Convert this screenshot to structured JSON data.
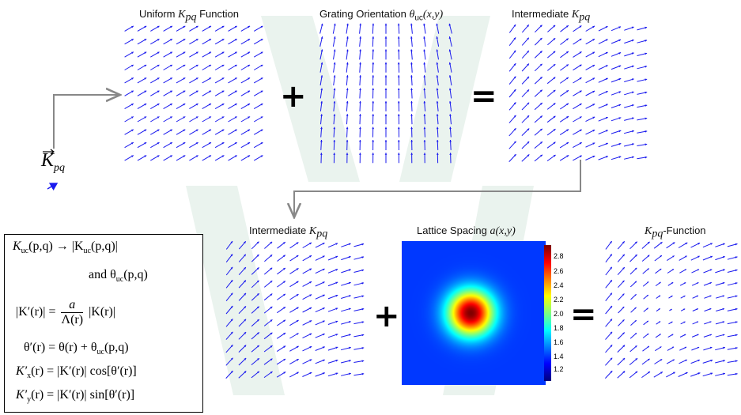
{
  "titles": {
    "uniform_prefix": "Uniform ",
    "uniform_sym": "K",
    "uniform_sub": "pq",
    "uniform_suffix": " Function",
    "grating_prefix": "Grating Orientation ",
    "grating_sym": "θ",
    "grating_sub": "uc",
    "grating_args": "(x,y)",
    "intermediate_prefix": "Intermediate ",
    "intermediate_sym": "K",
    "intermediate_sub": "pq",
    "lattice_prefix": "Lattice Spacing ",
    "lattice_sym": "a",
    "lattice_args": "(x,y)",
    "final_sym": "K",
    "final_sub": "pq",
    "final_suffix": "-Function"
  },
  "operators": {
    "plus": "+",
    "equals": "="
  },
  "input_vector": {
    "symbol": "K",
    "sub": "pq"
  },
  "colorbar": {
    "ticks": [
      "2.8",
      "2.6",
      "2.4",
      "2.2",
      "2.0",
      "1.8",
      "1.6",
      "1.4",
      "1.2"
    ]
  },
  "equations": {
    "l1a": "K",
    "l1b": "uc",
    "l1c": "(p,q) → |K",
    "l1d": "uc",
    "l1e": "(p,q)|",
    "l2a": "and θ",
    "l2b": "uc",
    "l2c": "(p,q)",
    "l3a": "|K′(r)| =",
    "l3num": "a",
    "l3den": "Λ(r)",
    "l3b": "|K(r)|",
    "l4a": "θ′(r) = θ(r) + θ",
    "l4b": "uc",
    "l4c": "(p,q)",
    "l5a": "K′",
    "l5b": "x",
    "l5c": "(r) = |K′(r)| cos[θ′(r)]",
    "l6a": "K′",
    "l6b": "y",
    "l6c": "(r) = |K′(r)| sin[θ′(r)]"
  },
  "colors": {
    "arrow": "#1a1aee",
    "connector": "#888888",
    "watermark": "#e9f2ee"
  }
}
